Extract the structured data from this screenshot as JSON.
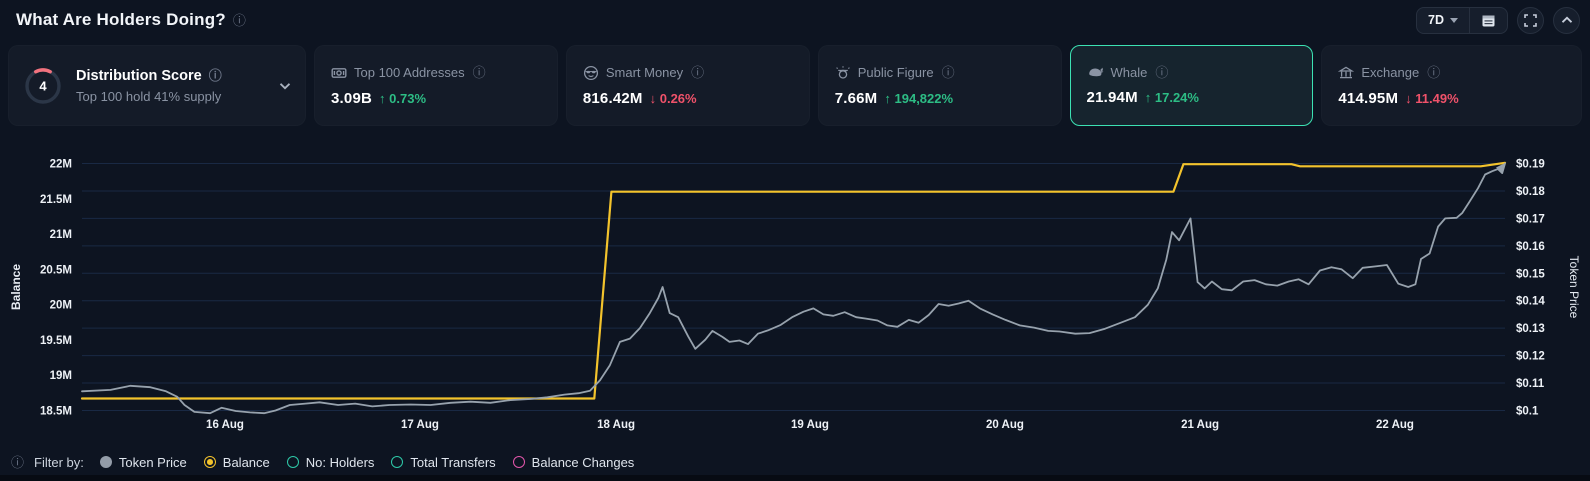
{
  "header": {
    "title": "What Are Holders Doing?",
    "range": "7D"
  },
  "colors": {
    "background": "#0d1421",
    "card": "#141b28",
    "accent_teal": "#3ce2b3",
    "balance_line": "#f3c32c",
    "price_line": "#97a2ad",
    "positive": "#2dbd85",
    "negative": "#f0526a",
    "legend_holders": "#2ec9a8",
    "legend_transfers": "#2ec9a8",
    "legend_balance_changes": "#e256ab",
    "gauge_arc": "#f2727e"
  },
  "cards": [
    {
      "id": "distribution-score",
      "title": "Distribution Score",
      "subtitle": "Top 100 hold 41% supply",
      "score": "4"
    },
    {
      "id": "top-100-addresses",
      "label": "Top 100 Addresses",
      "value": "3.09B",
      "change": "↑ 0.73%",
      "direction": "up"
    },
    {
      "id": "smart-money",
      "label": "Smart Money",
      "value": "816.42M",
      "change": "↓ 0.26%",
      "direction": "down"
    },
    {
      "id": "public-figure",
      "label": "Public Figure",
      "value": "7.66M",
      "change": "↑ 194,822%",
      "direction": "up"
    },
    {
      "id": "whale",
      "label": "Whale",
      "value": "21.94M",
      "change": "↑ 17.24%",
      "direction": "up",
      "selected": true
    },
    {
      "id": "exchange",
      "label": "Exchange",
      "value": "414.95M",
      "change": "↓ 11.49%",
      "direction": "down"
    }
  ],
  "chart_data": {
    "type": "line",
    "title": "",
    "grid": "horizontal",
    "x_axis": {
      "labels": [
        "16 Aug",
        "17 Aug",
        "18 Aug",
        "19 Aug",
        "20 Aug",
        "21 Aug",
        "22 Aug"
      ],
      "positions_pct": [
        10.05,
        23.75,
        37.53,
        51.16,
        64.86,
        78.57,
        92.27
      ]
    },
    "left_axis": {
      "label": "Balance",
      "ticks": [
        "22M",
        "21.5M",
        "21M",
        "20.5M",
        "20M",
        "19.5M",
        "19M",
        "18.5M"
      ],
      "tick_values": [
        22,
        21.5,
        21,
        20.5,
        20,
        19.5,
        19,
        18.5
      ],
      "range": [
        18.5,
        22
      ],
      "unit": "M tokens"
    },
    "right_axis": {
      "label": "Token Price",
      "ticks": [
        "$0.19",
        "$0.18",
        "$0.17",
        "$0.16",
        "$0.15",
        "$0.14",
        "$0.13",
        "$0.12",
        "$0.11",
        "$0.1"
      ],
      "tick_values": [
        0.19,
        0.18,
        0.17,
        0.16,
        0.15,
        0.14,
        0.13,
        0.12,
        0.11,
        0.1
      ],
      "range": [
        0.1,
        0.19
      ],
      "unit": "USD"
    },
    "series": [
      {
        "name": "Balance",
        "axis": "left",
        "color": "#f3c32c",
        "style": "step",
        "points": [
          [
            0,
            18.67
          ],
          [
            36.0,
            18.67
          ],
          [
            37.2,
            21.6
          ],
          [
            76.7,
            21.6
          ],
          [
            77.4,
            21.99
          ],
          [
            85.0,
            21.99
          ],
          [
            85.6,
            21.96
          ],
          [
            98.3,
            21.96
          ],
          [
            100,
            22.01
          ]
        ]
      },
      {
        "name": "Token Price",
        "axis": "right",
        "color": "#97a2ad",
        "style": "line",
        "points": [
          [
            0,
            0.107
          ],
          [
            2.0,
            0.1075
          ],
          [
            3.4,
            0.109
          ],
          [
            4.8,
            0.1085
          ],
          [
            5.9,
            0.107
          ],
          [
            6.7,
            0.105
          ],
          [
            7.2,
            0.102
          ],
          [
            7.9,
            0.0995
          ],
          [
            9.0,
            0.099
          ],
          [
            9.8,
            0.101
          ],
          [
            10.8,
            0.0998
          ],
          [
            11.8,
            0.0993
          ],
          [
            12.8,
            0.099
          ],
          [
            13.6,
            0.1
          ],
          [
            14.6,
            0.102
          ],
          [
            15.7,
            0.1025
          ],
          [
            16.7,
            0.103
          ],
          [
            18.0,
            0.102
          ],
          [
            19.2,
            0.1025
          ],
          [
            20.4,
            0.1015
          ],
          [
            21.6,
            0.102
          ],
          [
            23.1,
            0.1022
          ],
          [
            24.5,
            0.102
          ],
          [
            25.9,
            0.1028
          ],
          [
            27.3,
            0.1032
          ],
          [
            28.7,
            0.1028
          ],
          [
            30.1,
            0.1038
          ],
          [
            31.5,
            0.1042
          ],
          [
            32.7,
            0.1048
          ],
          [
            33.9,
            0.1058
          ],
          [
            34.9,
            0.1063
          ],
          [
            35.7,
            0.1072
          ],
          [
            36.4,
            0.111
          ],
          [
            37.1,
            0.1165
          ],
          [
            37.8,
            0.125
          ],
          [
            38.5,
            0.1262
          ],
          [
            39.2,
            0.13
          ],
          [
            39.9,
            0.1355
          ],
          [
            40.5,
            0.141
          ],
          [
            40.8,
            0.145
          ],
          [
            41.3,
            0.1355
          ],
          [
            41.9,
            0.134
          ],
          [
            42.6,
            0.127
          ],
          [
            43.1,
            0.1225
          ],
          [
            43.8,
            0.1258
          ],
          [
            44.3,
            0.129
          ],
          [
            45.0,
            0.1268
          ],
          [
            45.5,
            0.125
          ],
          [
            46.2,
            0.1255
          ],
          [
            46.8,
            0.1242
          ],
          [
            47.5,
            0.128
          ],
          [
            48.2,
            0.1292
          ],
          [
            49.1,
            0.1312
          ],
          [
            49.9,
            0.134
          ],
          [
            50.7,
            0.136
          ],
          [
            51.4,
            0.1372
          ],
          [
            52.1,
            0.135
          ],
          [
            52.8,
            0.1345
          ],
          [
            53.6,
            0.1358
          ],
          [
            54.4,
            0.134
          ],
          [
            55.1,
            0.1335
          ],
          [
            55.9,
            0.1328
          ],
          [
            56.6,
            0.131
          ],
          [
            57.3,
            0.1305
          ],
          [
            58.1,
            0.133
          ],
          [
            58.8,
            0.132
          ],
          [
            59.5,
            0.1348
          ],
          [
            60.2,
            0.1388
          ],
          [
            60.9,
            0.1382
          ],
          [
            61.6,
            0.139
          ],
          [
            62.3,
            0.14
          ],
          [
            63.1,
            0.1372
          ],
          [
            64.0,
            0.135
          ],
          [
            64.9,
            0.133
          ],
          [
            65.9,
            0.131
          ],
          [
            66.9,
            0.1302
          ],
          [
            67.9,
            0.129
          ],
          [
            68.7,
            0.1288
          ],
          [
            69.8,
            0.128
          ],
          [
            70.8,
            0.1282
          ],
          [
            71.9,
            0.1298
          ],
          [
            73.0,
            0.132
          ],
          [
            74.0,
            0.134
          ],
          [
            74.9,
            0.1385
          ],
          [
            75.6,
            0.1445
          ],
          [
            76.2,
            0.155
          ],
          [
            76.6,
            0.165
          ],
          [
            77.1,
            0.162
          ],
          [
            77.9,
            0.17
          ],
          [
            78.4,
            0.1468
          ],
          [
            78.9,
            0.1445
          ],
          [
            79.4,
            0.147
          ],
          [
            80.1,
            0.1442
          ],
          [
            80.8,
            0.1438
          ],
          [
            81.6,
            0.147
          ],
          [
            82.4,
            0.1475
          ],
          [
            83.2,
            0.146
          ],
          [
            84.0,
            0.1455
          ],
          [
            84.8,
            0.147
          ],
          [
            85.5,
            0.1478
          ],
          [
            86.2,
            0.146
          ],
          [
            87.0,
            0.151
          ],
          [
            87.8,
            0.1522
          ],
          [
            88.5,
            0.1515
          ],
          [
            89.3,
            0.1482
          ],
          [
            90.0,
            0.152
          ],
          [
            90.9,
            0.1525
          ],
          [
            91.7,
            0.153
          ],
          [
            92.5,
            0.1462
          ],
          [
            93.2,
            0.145
          ],
          [
            93.7,
            0.146
          ],
          [
            94.1,
            0.1552
          ],
          [
            94.7,
            0.1572
          ],
          [
            95.3,
            0.167
          ],
          [
            95.8,
            0.17
          ],
          [
            96.6,
            0.1702
          ],
          [
            97.0,
            0.172
          ],
          [
            97.5,
            0.176
          ],
          [
            98.1,
            0.181
          ],
          [
            98.6,
            0.186
          ],
          [
            99.1,
            0.1872
          ],
          [
            99.5,
            0.188
          ],
          [
            99.8,
            0.1865
          ],
          [
            100,
            0.19
          ]
        ]
      }
    ]
  },
  "footer": {
    "filter_label": "Filter by:",
    "options": [
      {
        "label": "Token Price",
        "color": "#939ca8",
        "style": "filled"
      },
      {
        "label": "Balance",
        "color": "#f3c32c",
        "style": "selected"
      },
      {
        "label": "No: Holders",
        "color": "#2ec9a8",
        "style": "ring"
      },
      {
        "label": "Total Transfers",
        "color": "#2ec9a8",
        "style": "ring"
      },
      {
        "label": "Balance Changes",
        "color": "#e256ab",
        "style": "ring"
      }
    ]
  }
}
